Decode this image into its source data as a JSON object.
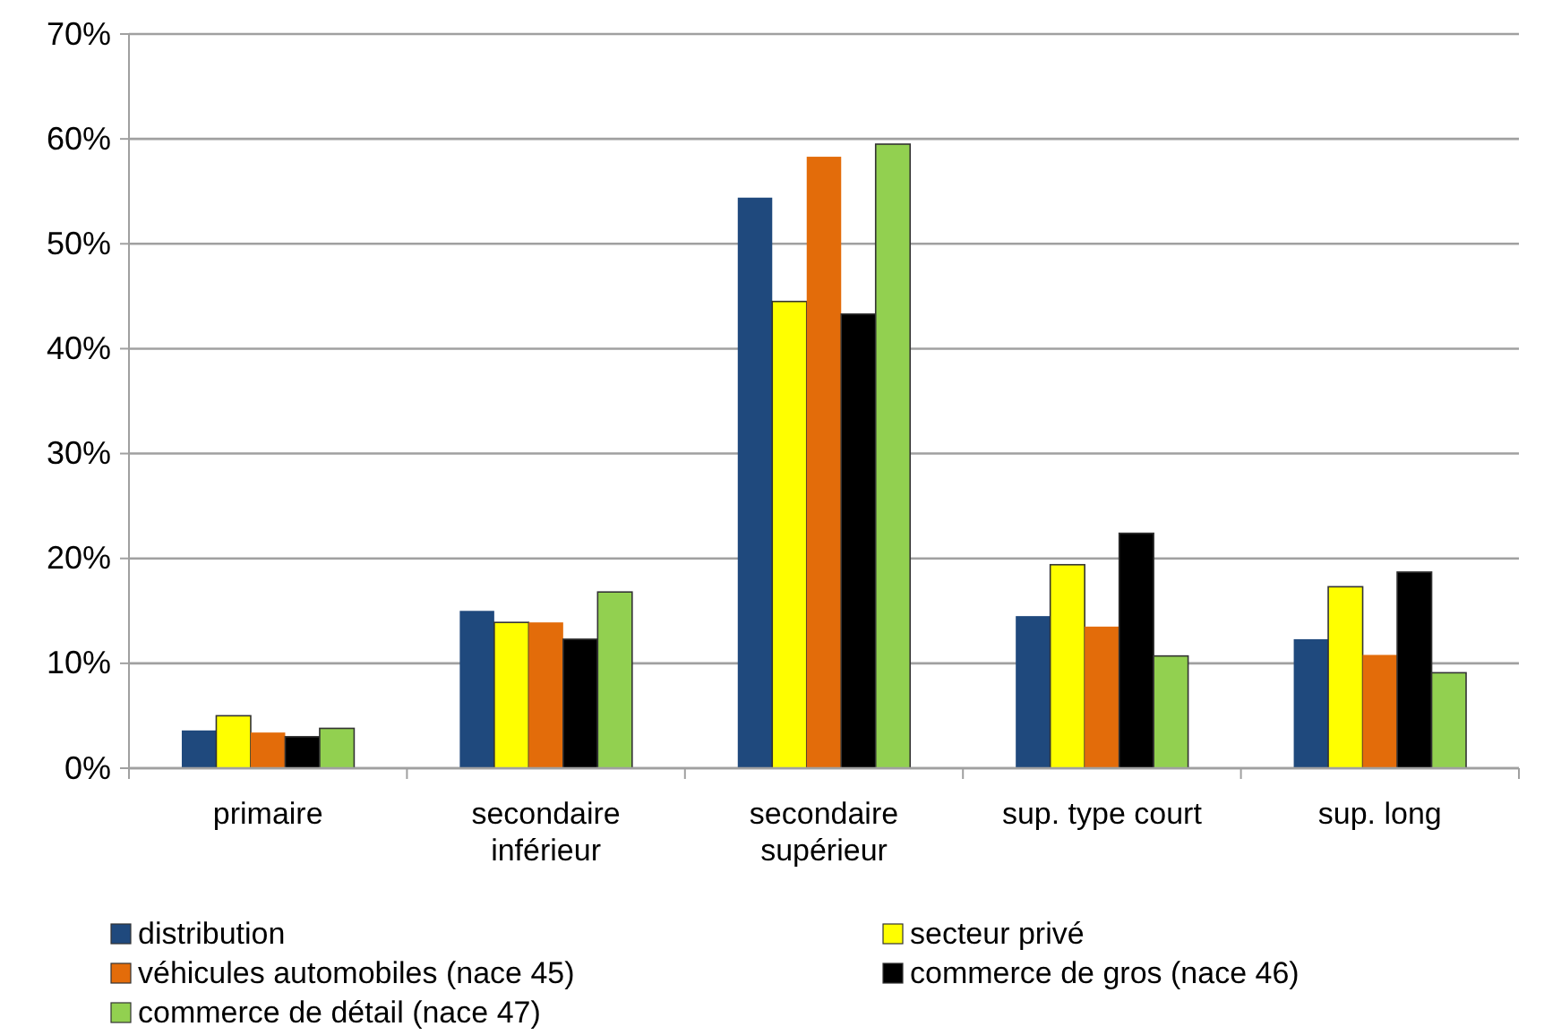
{
  "chart_data": {
    "type": "bar",
    "categories": [
      "primaire",
      "secondaire inférieur",
      "secondaire supérieur",
      "sup. type court",
      "sup. long"
    ],
    "series": [
      {
        "name": "distribution",
        "color": "#1f497d",
        "values": [
          3.6,
          15.0,
          54.4,
          14.5,
          12.3
        ]
      },
      {
        "name": "secteur privé",
        "color": "#ffff00",
        "values": [
          5.0,
          13.9,
          44.5,
          19.4,
          17.3
        ]
      },
      {
        "name": "véhicules automobiles (nace 45)",
        "color": "#e36c0a",
        "values": [
          3.4,
          13.9,
          58.3,
          13.5,
          10.8
        ]
      },
      {
        "name": "commerce de gros (nace 46)",
        "color": "#000000",
        "values": [
          3.0,
          12.3,
          43.3,
          22.4,
          18.7
        ]
      },
      {
        "name": "commerce de détail (nace 47)",
        "color": "#92d050",
        "values": [
          3.8,
          16.8,
          59.5,
          10.7,
          9.1
        ]
      }
    ],
    "ylim": [
      0,
      70
    ],
    "yticks": [
      {
        "value": 0,
        "label": "0%"
      },
      {
        "value": 10,
        "label": "10%"
      },
      {
        "value": 20,
        "label": "20%"
      },
      {
        "value": 30,
        "label": "30%"
      },
      {
        "value": 40,
        "label": "40%"
      },
      {
        "value": 50,
        "label": "50%"
      },
      {
        "value": 60,
        "label": "60%"
      },
      {
        "value": 70,
        "label": "70%"
      }
    ],
    "grid": "y",
    "legend": "bottom"
  }
}
